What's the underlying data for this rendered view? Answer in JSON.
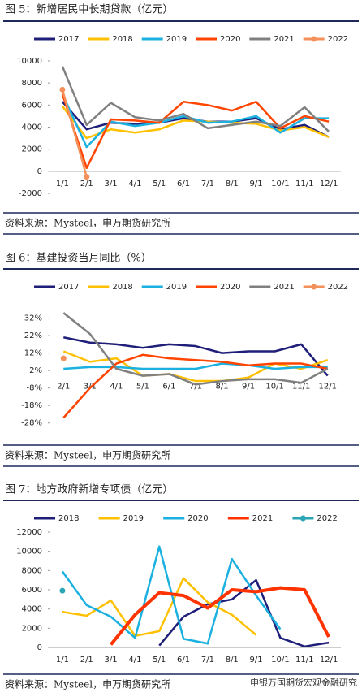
{
  "chart_data": [
    {
      "type": "line",
      "title": "图 5：新增居民中长期贷款（亿元）",
      "source": "资料来源：Mysteel，申万期货研究所",
      "categories": [
        "1/1",
        "2/1",
        "3/1",
        "4/1",
        "5/1",
        "6/1",
        "7/1",
        "8/1",
        "9/1",
        "10/1",
        "11/1",
        "12/1"
      ],
      "ylim": [
        -2000,
        10000
      ],
      "yticks": [
        -2000,
        0,
        2000,
        4000,
        6000,
        8000,
        10000
      ],
      "series": [
        {
          "name": "2017",
          "color": "#1f1f7a",
          "values": [
            6300,
            3800,
            4400,
            4300,
            4400,
            4800,
            4500,
            4500,
            4800,
            3800,
            4200,
            3100
          ]
        },
        {
          "name": "2018",
          "color": "#ffc000",
          "values": [
            5900,
            3000,
            3800,
            3500,
            3800,
            4600,
            4500,
            4400,
            4300,
            3700,
            4000,
            3100
          ]
        },
        {
          "name": "2019",
          "color": "#1ab0e0",
          "values": [
            7000,
            2200,
            4500,
            4100,
            4400,
            5000,
            4400,
            4500,
            5000,
            3500,
            4800,
            4800
          ]
        },
        {
          "name": "2020",
          "color": "#ff4500",
          "values": [
            7000,
            300,
            4700,
            4600,
            4400,
            6300,
            6000,
            5500,
            6300,
            3900,
            5000,
            4500
          ]
        },
        {
          "name": "2021",
          "color": "#808080",
          "values": [
            9500,
            4200,
            6200,
            4900,
            4600,
            5200,
            3900,
            4200,
            4500,
            4100,
            5800,
            3600
          ]
        },
        {
          "name": "2022",
          "color": "#f4915a",
          "markers": true,
          "values": [
            7400,
            -500,
            null,
            null,
            null,
            null,
            null,
            null,
            null,
            null,
            null,
            null
          ]
        }
      ]
    },
    {
      "type": "line",
      "title": "图 6：基建投资当月同比（%）",
      "source": "资料来源：Mysteel，申万期货研究所",
      "categories": [
        "2/1",
        "3/1",
        "4/1",
        "5/1",
        "6/1",
        "7/1",
        "8/1",
        "9/1",
        "10/1",
        "11/1",
        "12/1"
      ],
      "ylim": [
        -30,
        36
      ],
      "yticks": [
        {
          "value": -28,
          "label": "-28%"
        },
        {
          "value": -18,
          "label": "-18%"
        },
        {
          "value": -8,
          "label": "-8%"
        },
        {
          "value": 2,
          "label": "2%"
        },
        {
          "value": 12,
          "label": "12%"
        },
        {
          "value": 22,
          "label": "22%"
        },
        {
          "value": 32,
          "label": "32%"
        }
      ],
      "series": [
        {
          "name": "2017",
          "color": "#1f1f7a",
          "values": [
            21,
            18,
            17,
            15,
            17,
            16,
            12,
            13,
            13,
            17,
            -1
          ]
        },
        {
          "name": "2018",
          "color": "#ffc000",
          "values": [
            13,
            7,
            9,
            -1,
            0,
            -4,
            -4,
            -2,
            6,
            3,
            8
          ]
        },
        {
          "name": "2019",
          "color": "#1ab0e0",
          "values": [
            3,
            4,
            4,
            3,
            3,
            3,
            6,
            5,
            3,
            4,
            4
          ]
        },
        {
          "name": "2020",
          "color": "#ff4500",
          "values": [
            -25,
            -8,
            6,
            11,
            9,
            8,
            7,
            5,
            6,
            6,
            3
          ]
        },
        {
          "name": "2021",
          "color": "#808080",
          "values": [
            35,
            23,
            3,
            -1,
            0,
            -6,
            -4,
            -3,
            -3,
            -5,
            3
          ]
        },
        {
          "name": "2022",
          "color": "#f4915a",
          "markers": true,
          "values": [
            9,
            null,
            null,
            null,
            null,
            null,
            null,
            null,
            null,
            null,
            null
          ]
        }
      ]
    },
    {
      "type": "line",
      "title": "图 7：地方政府新增专项债（亿元）",
      "source": "资料来源：Mysteel，申万期货研究所",
      "categories": [
        "1/1",
        "2/1",
        "3/1",
        "4/1",
        "5/1",
        "6/1",
        "7/1",
        "8/1",
        "9/1",
        "10/1",
        "11/1",
        "12/1"
      ],
      "ylim": [
        0,
        12000
      ],
      "yticks": [
        0,
        2000,
        4000,
        6000,
        8000,
        10000,
        12000
      ],
      "series": [
        {
          "name": "2018",
          "color": "#1f1f7a",
          "values": [
            null,
            null,
            null,
            null,
            200,
            3200,
            4500,
            5000,
            7000,
            1000,
            100,
            500
          ]
        },
        {
          "name": "2019",
          "color": "#ffc000",
          "values": [
            3700,
            3300,
            4900,
            1200,
            1700,
            7200,
            4700,
            3400,
            1300,
            null,
            null,
            null
          ]
        },
        {
          "name": "2020",
          "color": "#1ab0e0",
          "values": [
            7900,
            4400,
            3200,
            1000,
            10500,
            900,
            400,
            9200,
            5400,
            1900,
            null,
            null
          ]
        },
        {
          "name": "2021",
          "color": "#ff3300",
          "line_width": 4,
          "values": [
            null,
            null,
            300,
            3400,
            5700,
            5400,
            4100,
            6000,
            5800,
            6200,
            6000,
            1100
          ]
        },
        {
          "name": "2022",
          "color": "#2aa5b5",
          "markers": true,
          "values": [
            5900,
            null,
            null,
            null,
            null,
            null,
            null,
            null,
            null,
            null,
            null,
            null
          ]
        }
      ]
    }
  ],
  "watermark": "申银万国期货宏观金融研究"
}
